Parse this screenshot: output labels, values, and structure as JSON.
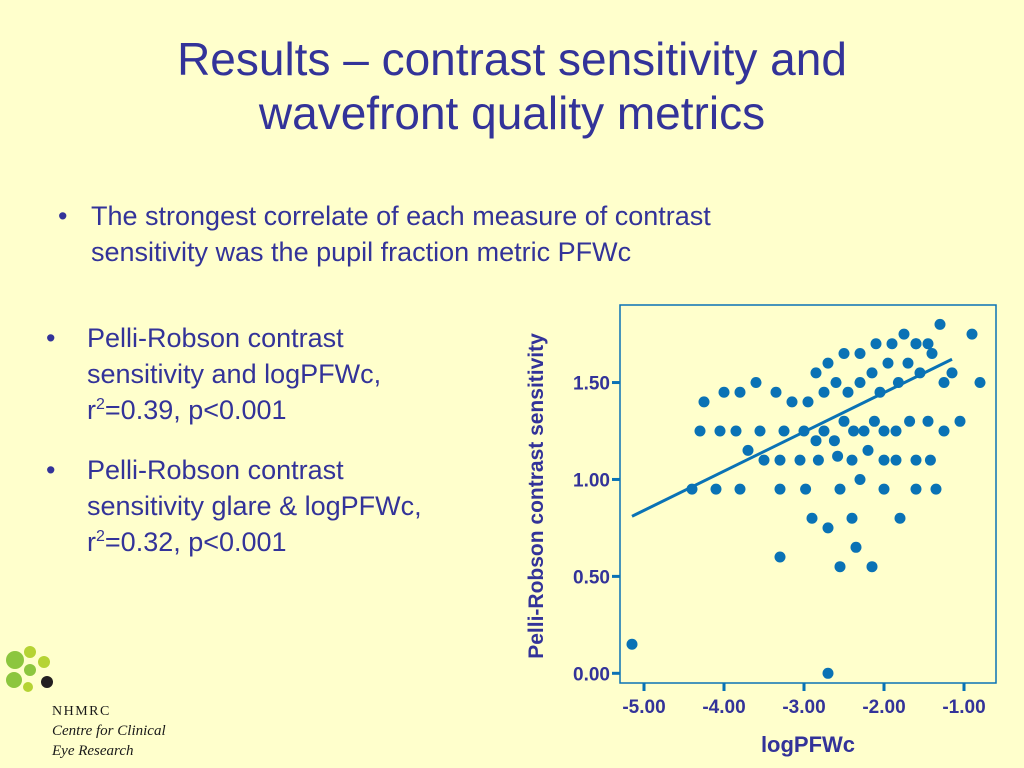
{
  "slide": {
    "title_line1": "Results – contrast sensitivity and",
    "title_line2": "wavefront quality metrics",
    "bullet_glyph": "•",
    "bullet1_line1": "The strongest correlate of each measure of contrast",
    "bullet1_line2": "sensitivity was the pupil fraction metric PFWc",
    "bullet2_line1": "Pelli-Robson contrast",
    "bullet2_line2": "sensitivity and logPFWc,",
    "bullet2_r": "r",
    "bullet2_sup": "2",
    "bullet2_rest": "=0.39, p<0.001",
    "bullet3_line1": "Pelli-Robson contrast",
    "bullet3_line2": "sensitivity glare & logPFWc,",
    "bullet3_r": "r",
    "bullet3_sup": "2",
    "bullet3_rest": "=0.32, p<0.001"
  },
  "logo": {
    "org": "NHMRC",
    "line1": "Centre for Clinical",
    "line2": "Eye Research",
    "dot_colors": [
      "#8CC63F",
      "#B5D334",
      "#231F20"
    ]
  },
  "colors": {
    "background": "#FFFFCC",
    "text": "#333399",
    "marker": "#0A72B5",
    "axis_label": "#333399"
  },
  "chart_data": {
    "type": "scatter",
    "xlabel": "logPFWc",
    "ylabel": "Pelli-Robson contrast sensitivity",
    "xlim": [
      -5.3,
      -0.6
    ],
    "ylim": [
      -0.05,
      1.9
    ],
    "x_ticks": [
      -5.0,
      -4.0,
      -3.0,
      -2.0,
      -1.0
    ],
    "x_tick_labels": [
      "-5.00",
      "-4.00",
      "-3.00",
      "-2.00",
      "-1.00"
    ],
    "y_ticks": [
      0.0,
      0.5,
      1.0,
      1.5
    ],
    "y_tick_labels": [
      "0.00",
      "0.50",
      "1.00",
      "1.50"
    ],
    "grid": false,
    "trend_line": {
      "x": [
        -5.15,
        -1.15
      ],
      "y": [
        0.81,
        1.62
      ]
    },
    "points": [
      [
        -5.15,
        0.15
      ],
      [
        -2.7,
        0.0
      ],
      [
        -4.4,
        0.95
      ],
      [
        -4.1,
        0.95
      ],
      [
        -3.8,
        0.95
      ],
      [
        -3.3,
        0.95
      ],
      [
        -2.98,
        0.95
      ],
      [
        -2.55,
        0.95
      ],
      [
        -2.3,
        1.0
      ],
      [
        -2.0,
        0.95
      ],
      [
        -1.6,
        0.95
      ],
      [
        -1.35,
        0.95
      ],
      [
        -4.3,
        1.25
      ],
      [
        -4.05,
        1.25
      ],
      [
        -3.85,
        1.25
      ],
      [
        -3.55,
        1.25
      ],
      [
        -3.25,
        1.25
      ],
      [
        -3.0,
        1.25
      ],
      [
        -2.85,
        1.2
      ],
      [
        -2.75,
        1.25
      ],
      [
        -2.62,
        1.2
      ],
      [
        -2.5,
        1.3
      ],
      [
        -2.38,
        1.25
      ],
      [
        -2.25,
        1.25
      ],
      [
        -2.12,
        1.3
      ],
      [
        -2.0,
        1.25
      ],
      [
        -1.85,
        1.25
      ],
      [
        -1.68,
        1.3
      ],
      [
        -1.45,
        1.3
      ],
      [
        -1.25,
        1.25
      ],
      [
        -1.05,
        1.3
      ],
      [
        -4.25,
        1.4
      ],
      [
        -4.0,
        1.45
      ],
      [
        -3.8,
        1.45
      ],
      [
        -3.6,
        1.5
      ],
      [
        -3.35,
        1.45
      ],
      [
        -3.15,
        1.4
      ],
      [
        -2.95,
        1.4
      ],
      [
        -2.75,
        1.45
      ],
      [
        -2.6,
        1.5
      ],
      [
        -2.45,
        1.45
      ],
      [
        -2.3,
        1.5
      ],
      [
        -2.15,
        1.55
      ],
      [
        -2.05,
        1.45
      ],
      [
        -1.95,
        1.6
      ],
      [
        -1.82,
        1.5
      ],
      [
        -1.7,
        1.6
      ],
      [
        -1.55,
        1.55
      ],
      [
        -1.4,
        1.65
      ],
      [
        -1.25,
        1.5
      ],
      [
        -1.15,
        1.55
      ],
      [
        -2.85,
        1.55
      ],
      [
        -2.7,
        1.6
      ],
      [
        -2.5,
        1.65
      ],
      [
        -2.3,
        1.65
      ],
      [
        -2.1,
        1.7
      ],
      [
        -1.9,
        1.7
      ],
      [
        -1.75,
        1.75
      ],
      [
        -1.6,
        1.7
      ],
      [
        -1.45,
        1.7
      ],
      [
        -1.3,
        1.8
      ],
      [
        -0.8,
        1.5
      ],
      [
        -0.9,
        1.75
      ],
      [
        -1.6,
        1.7
      ],
      [
        -3.7,
        1.15
      ],
      [
        -3.5,
        1.1
      ],
      [
        -3.3,
        1.1
      ],
      [
        -3.05,
        1.1
      ],
      [
        -2.82,
        1.1
      ],
      [
        -2.58,
        1.12
      ],
      [
        -2.4,
        1.1
      ],
      [
        -2.2,
        1.15
      ],
      [
        -2.0,
        1.1
      ],
      [
        -1.85,
        1.1
      ],
      [
        -1.6,
        1.1
      ],
      [
        -1.42,
        1.1
      ],
      [
        -2.9,
        0.8
      ],
      [
        -2.7,
        0.75
      ],
      [
        -2.4,
        0.8
      ],
      [
        -1.8,
        0.8
      ],
      [
        -3.3,
        0.6
      ],
      [
        -2.55,
        0.55
      ],
      [
        -2.35,
        0.65
      ],
      [
        -2.15,
        0.55
      ]
    ]
  }
}
